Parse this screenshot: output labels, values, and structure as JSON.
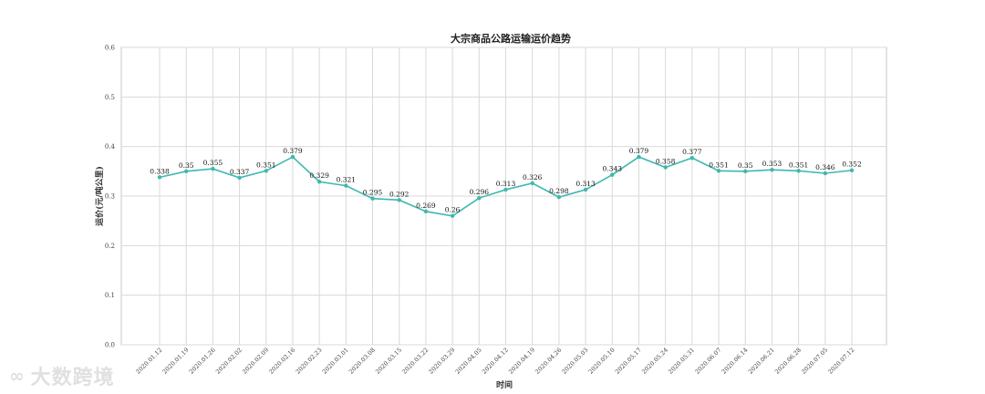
{
  "chart_data": {
    "type": "line",
    "title": "大宗商品公路运输运价趋势",
    "xlabel": "时间",
    "ylabel": "运价(元/吨公里)",
    "ylim": [
      0,
      0.6
    ],
    "yticks": [
      "0.0",
      "0.1",
      "0.2",
      "0.3",
      "0.4",
      "0.5",
      "0.6"
    ],
    "ytick_values": [
      0,
      0.1,
      0.2,
      0.3,
      0.4,
      0.5,
      0.6
    ],
    "grid": true,
    "categories": [
      "2020.01.12",
      "2020.01.19",
      "2020.01.26",
      "2020.02.02",
      "2020.02.09",
      "2020.02.16",
      "2020.02.23",
      "2020.03.01",
      "2020.03.08",
      "2020.03.15",
      "2020.03.22",
      "2020.03.29",
      "2020.04.05",
      "2020.04.12",
      "2020.04.19",
      "2020.04.26",
      "2020.05.03",
      "2020.05.10",
      "2020.05.17",
      "2020.05.24",
      "2020.05.31",
      "2020.06.07",
      "2020.06.14",
      "2020.06.21",
      "2020.06.28",
      "2020.07.05",
      "2020.07.12"
    ],
    "series": [
      {
        "values": [
          0.338,
          0.35,
          0.355,
          0.337,
          0.351,
          0.379,
          0.329,
          0.321,
          0.295,
          0.292,
          0.269,
          0.26,
          0.296,
          0.313,
          0.326,
          0.298,
          0.313,
          0.343,
          0.379,
          0.358,
          0.377,
          0.351,
          0.35,
          0.353,
          0.351,
          0.346,
          0.352
        ],
        "labels": [
          "0.338",
          "0.35",
          "0.355",
          "0.337",
          "0.351",
          "0.379",
          "0.329",
          "0.321",
          "0.295",
          "0.292",
          "0.269",
          "0.26",
          "0.296",
          "0.313",
          "0.326",
          "0.298",
          "0.313",
          "0.343",
          "0.379",
          "0.358",
          "0.377",
          "0.351",
          "0.35",
          "0.353",
          "0.351",
          "0.346",
          "0.352"
        ],
        "color": "#3fb8af"
      }
    ]
  },
  "watermark": {
    "icon": "ribbon-logo-icon",
    "text": "大数跨境"
  }
}
